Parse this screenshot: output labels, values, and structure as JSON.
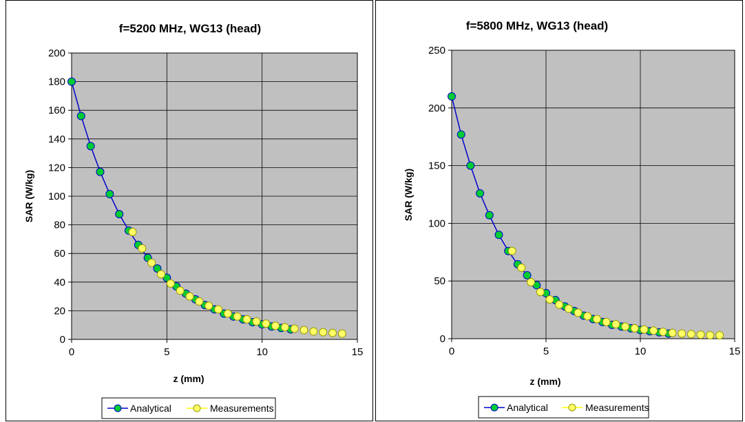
{
  "chart_data": [
    {
      "type": "scatter",
      "title": "f=5200 MHz, WG13  (head)",
      "xlabel": "z (mm)",
      "ylabel": "SAR (W/kg)",
      "xlim": [
        0,
        15
      ],
      "ylim": [
        0,
        200
      ],
      "xticks": [
        0,
        5,
        10,
        15
      ],
      "yticks": [
        0,
        20,
        40,
        60,
        80,
        100,
        120,
        140,
        160,
        180,
        200
      ],
      "grid": true,
      "plot_background": "#c0c0c0",
      "legend_position": "bottom",
      "series": [
        {
          "name": "Analytical",
          "style": "line+markers",
          "line_color": "#0000cc",
          "marker_color": "#00cc33",
          "x": [
            0,
            0.5,
            1,
            1.5,
            2,
            2.5,
            3,
            3.5,
            4,
            4.5,
            5,
            5.5,
            6,
            6.5,
            7,
            7.5,
            8,
            8.5,
            9,
            9.5,
            10,
            10.5,
            11,
            11.5
          ],
          "y": [
            180,
            156,
            135,
            117,
            101.5,
            87.5,
            76,
            66,
            57,
            49.5,
            43,
            37,
            32,
            28,
            24,
            21,
            18,
            16,
            14,
            12,
            10.5,
            9,
            8,
            7
          ]
        },
        {
          "name": "Measurements",
          "style": "markers",
          "line_color": "#ffff00",
          "marker_color": "#ffff66",
          "x": [
            3.2,
            3.7,
            4.2,
            4.7,
            5.2,
            5.7,
            6.2,
            6.7,
            7.2,
            7.7,
            8.2,
            8.7,
            9.2,
            9.7,
            10.2,
            10.7,
            11.2,
            11.7,
            12.2,
            12.7,
            13.2,
            13.7,
            14.2
          ],
          "y": [
            75,
            63.5,
            53.5,
            45.5,
            39,
            34,
            30,
            26.5,
            23.5,
            21,
            18,
            16,
            14,
            12.5,
            11,
            9.5,
            8.5,
            7.5,
            6.5,
            5.5,
            5,
            4.5,
            4
          ]
        }
      ]
    },
    {
      "type": "scatter",
      "title": "f=5800 MHz, WG13  (head)",
      "xlabel": "z (mm)",
      "ylabel": "SAR (W/kg)",
      "xlim": [
        0,
        15
      ],
      "ylim": [
        0,
        250
      ],
      "xticks": [
        0,
        5,
        10,
        15
      ],
      "yticks": [
        0,
        50,
        100,
        150,
        200,
        250
      ],
      "grid": true,
      "plot_background": "#c0c0c0",
      "legend_position": "bottom",
      "series": [
        {
          "name": "Analytical",
          "style": "line+markers",
          "line_color": "#0000cc",
          "marker_color": "#00cc33",
          "x": [
            0,
            0.5,
            1,
            1.5,
            2,
            2.5,
            3,
            3.5,
            4,
            4.5,
            5,
            5.5,
            6,
            6.5,
            7,
            7.5,
            8,
            8.5,
            9,
            9.5,
            10,
            10.5,
            11,
            11.5
          ],
          "y": [
            210,
            177,
            150,
            126,
            107,
            90,
            76,
            64.5,
            55,
            46.5,
            39.5,
            33.5,
            28,
            24,
            20,
            17,
            14.5,
            12,
            10.5,
            9,
            7.5,
            6.5,
            5.5,
            4.5
          ]
        },
        {
          "name": "Measurements",
          "style": "markers",
          "line_color": "#ffff00",
          "marker_color": "#ffff66",
          "x": [
            3.2,
            3.7,
            4.2,
            4.7,
            5.2,
            5.7,
            6.2,
            6.7,
            7.2,
            7.7,
            8.2,
            8.7,
            9.2,
            9.7,
            10.2,
            10.7,
            11.2,
            11.7,
            12.2,
            12.7,
            13.2,
            13.7,
            14.2
          ],
          "y": [
            76,
            61.5,
            49,
            40.5,
            34,
            29.5,
            26,
            22.5,
            19.5,
            17,
            14.5,
            12.5,
            10.5,
            9,
            8,
            7,
            6,
            5,
            4.5,
            4,
            3.5,
            3,
            3
          ]
        }
      ]
    }
  ]
}
